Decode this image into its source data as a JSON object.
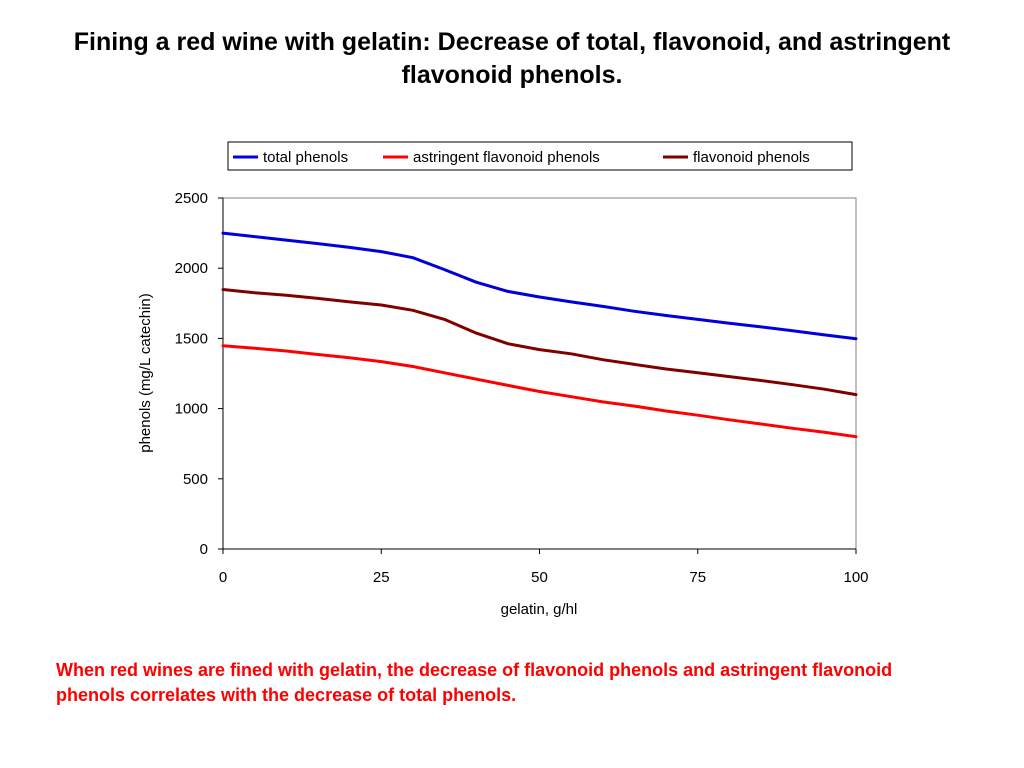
{
  "slide": {
    "title": "Fining a red wine with gelatin: Decrease of total, flavonoid, and astringent flavonoid phenols.",
    "caption": "When red wines are fined with gelatin, the decrease of flavonoid phenols and astringent flavonoid phenols correlates with the decrease of total phenols."
  },
  "chart_data": {
    "type": "line",
    "title": "",
    "xlabel": "gelatin, g/hl",
    "ylabel": "phenols (mg/L catechin)",
    "xlim": [
      0,
      100
    ],
    "ylim": [
      0,
      2500
    ],
    "x_ticks": [
      0,
      25,
      50,
      75,
      100
    ],
    "y_ticks": [
      0,
      500,
      1000,
      1500,
      2000,
      2500
    ],
    "grid": false,
    "legend_position": "top",
    "series": [
      {
        "name": "total phenols",
        "color": "#0000dd",
        "points": [
          [
            0,
            2250
          ],
          [
            5,
            2225
          ],
          [
            10,
            2200
          ],
          [
            15,
            2175
          ],
          [
            20,
            2148
          ],
          [
            25,
            2118
          ],
          [
            30,
            2075
          ],
          [
            35,
            1990
          ],
          [
            40,
            1900
          ],
          [
            45,
            1835
          ],
          [
            50,
            1795
          ],
          [
            55,
            1760
          ],
          [
            60,
            1728
          ],
          [
            65,
            1693
          ],
          [
            70,
            1663
          ],
          [
            75,
            1635
          ],
          [
            80,
            1608
          ],
          [
            85,
            1582
          ],
          [
            90,
            1555
          ],
          [
            95,
            1525
          ],
          [
            100,
            1498
          ]
        ]
      },
      {
        "name": "astringent flavonoid phenols",
        "color": "#ff0000",
        "points": [
          [
            0,
            1448
          ],
          [
            5,
            1430
          ],
          [
            10,
            1410
          ],
          [
            15,
            1385
          ],
          [
            20,
            1362
          ],
          [
            25,
            1335
          ],
          [
            30,
            1300
          ],
          [
            35,
            1255
          ],
          [
            40,
            1210
          ],
          [
            45,
            1165
          ],
          [
            50,
            1122
          ],
          [
            55,
            1085
          ],
          [
            60,
            1048
          ],
          [
            65,
            1018
          ],
          [
            70,
            983
          ],
          [
            75,
            953
          ],
          [
            80,
            920
          ],
          [
            85,
            890
          ],
          [
            90,
            860
          ],
          [
            95,
            832
          ],
          [
            100,
            800
          ]
        ]
      },
      {
        "name": "flavonoid phenols",
        "color": "#800000",
        "points": [
          [
            0,
            1848
          ],
          [
            5,
            1825
          ],
          [
            10,
            1808
          ],
          [
            15,
            1785
          ],
          [
            20,
            1760
          ],
          [
            25,
            1738
          ],
          [
            30,
            1700
          ],
          [
            35,
            1635
          ],
          [
            40,
            1538
          ],
          [
            45,
            1462
          ],
          [
            50,
            1420
          ],
          [
            55,
            1390
          ],
          [
            60,
            1348
          ],
          [
            65,
            1315
          ],
          [
            70,
            1282
          ],
          [
            75,
            1255
          ],
          [
            80,
            1228
          ],
          [
            85,
            1200
          ],
          [
            90,
            1170
          ],
          [
            95,
            1138
          ],
          [
            100,
            1100
          ]
        ]
      }
    ]
  }
}
